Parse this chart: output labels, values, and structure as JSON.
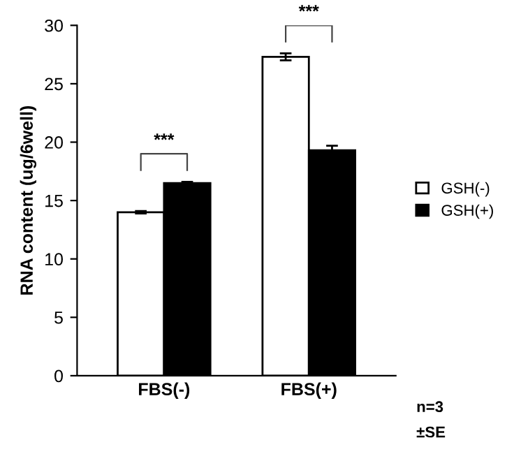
{
  "chart_data": {
    "type": "bar",
    "ylabel": "RNA content (ug/6well)",
    "categories": [
      "FBS(-)",
      "FBS(+)"
    ],
    "series": [
      {
        "name": "GSH(-)",
        "color": "#ffffff",
        "values": [
          14.0,
          27.3
        ],
        "errors": [
          0.1,
          0.3
        ]
      },
      {
        "name": "GSH(+)",
        "color": "#000000",
        "values": [
          16.5,
          19.3
        ],
        "errors": [
          0.1,
          0.4
        ]
      }
    ],
    "ylim": [
      0,
      30
    ],
    "yticks": [
      0,
      5,
      10,
      15,
      20,
      25,
      30
    ],
    "legend": "right",
    "grid": false,
    "annotations": [
      "***",
      "***",
      "n=3",
      "±SE"
    ]
  }
}
